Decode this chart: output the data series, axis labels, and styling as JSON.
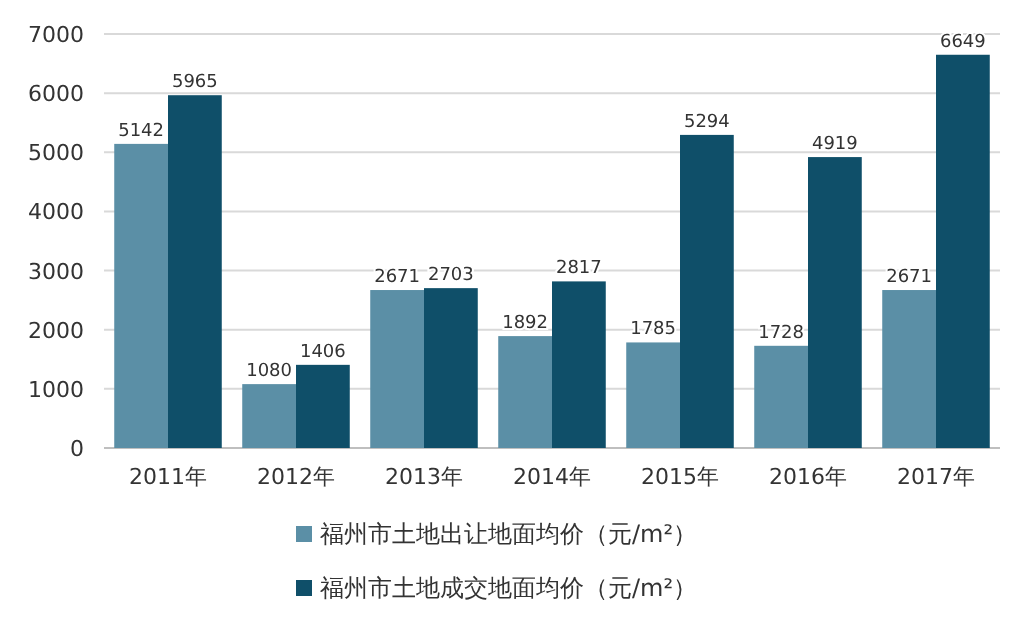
{
  "chart_data": {
    "type": "bar",
    "categories": [
      "2011年",
      "2012年",
      "2013年",
      "2014年",
      "2015年",
      "2016年",
      "2017年"
    ],
    "series": [
      {
        "name": "福州市土地出让地面均价（元/m²）",
        "color": "#5b8fa6",
        "values": [
          5142,
          1080,
          2671,
          1892,
          1785,
          1728,
          2671
        ]
      },
      {
        "name": "福州市土地成交地面均价（元/m²）",
        "color": "#0f4f69",
        "values": [
          5965,
          1406,
          2703,
          2817,
          5294,
          4919,
          6649
        ]
      }
    ],
    "ylim": [
      0,
      7000
    ],
    "yticks": [
      0,
      1000,
      2000,
      3000,
      4000,
      5000,
      6000,
      7000
    ],
    "grid": "y",
    "legend": "bottom",
    "data_labels": true
  }
}
